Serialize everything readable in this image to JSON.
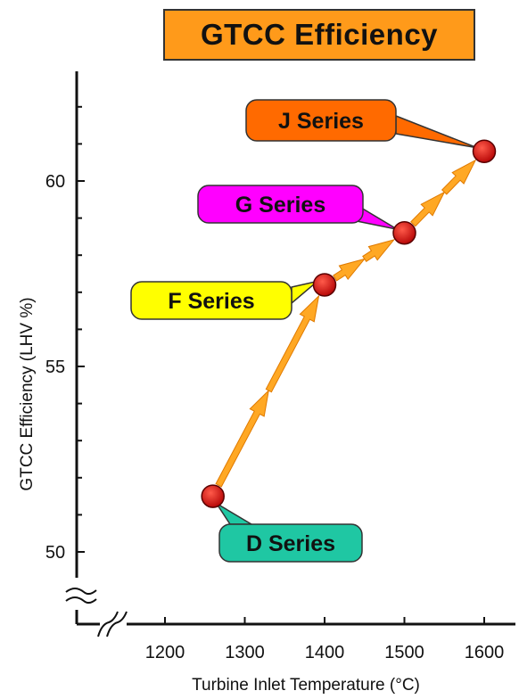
{
  "chart_data": {
    "type": "line",
    "title": "GTCC Efficiency",
    "xlabel": "Turbine Inlet Temperature (°C)",
    "ylabel": "GTCC  Efficiency  (LHV %)",
    "x_ticks": [
      1200,
      1300,
      1400,
      1500,
      1600
    ],
    "y_ticks": [
      50,
      55,
      60
    ],
    "xlim": [
      1100,
      1620
    ],
    "ylim": [
      48.2,
      62.8
    ],
    "axis_breaks": [
      "x",
      "y"
    ],
    "points": [
      {
        "x": 1260,
        "y": 51.5,
        "label": "D Series"
      },
      {
        "x": 1400,
        "y": 57.2,
        "label": "F Series"
      },
      {
        "x": 1500,
        "y": 58.6,
        "label": "G Series"
      },
      {
        "x": 1600,
        "y": 60.8,
        "label": "J Series"
      }
    ],
    "colors": {
      "title_box": "#ff9a1a",
      "marker": "#d01010",
      "arrow": "#ffa824",
      "D Series": "#1fc7a3",
      "F Series": "#ffff00",
      "G Series": "#ff00ff",
      "J Series": "#ff6a00"
    }
  }
}
